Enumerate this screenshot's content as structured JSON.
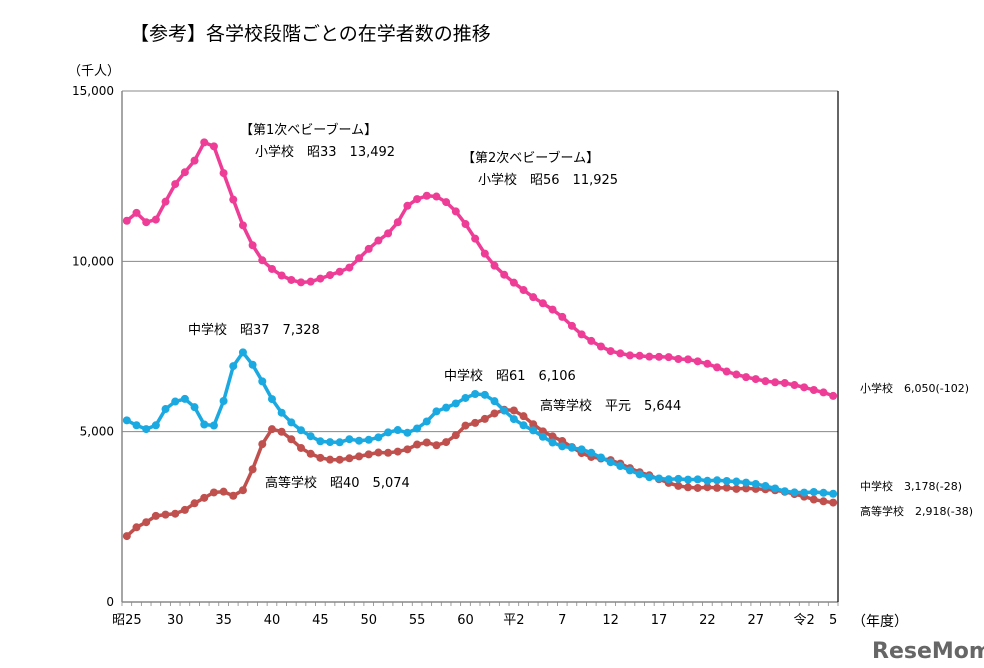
{
  "chart_data": {
    "type": "line",
    "title": "【参考】各学校段階ごとの在学者数の推移",
    "ylabel": "（千人）",
    "xlabel": "（年度）",
    "ylim": [
      0,
      15000
    ],
    "yticks": [
      "0",
      "5,000",
      "10,000",
      "15,000"
    ],
    "ytick_values": [
      0,
      5000,
      10000,
      15000
    ],
    "grid": "horizontal",
    "x_tick_labels": [
      {
        "index": 0,
        "label": "昭25"
      },
      {
        "index": 5,
        "label": "30"
      },
      {
        "index": 10,
        "label": "35"
      },
      {
        "index": 15,
        "label": "40"
      },
      {
        "index": 20,
        "label": "45"
      },
      {
        "index": 25,
        "label": "50"
      },
      {
        "index": 30,
        "label": "55"
      },
      {
        "index": 35,
        "label": "60"
      },
      {
        "index": 40,
        "label": "平2"
      },
      {
        "index": 45,
        "label": "7"
      },
      {
        "index": 50,
        "label": "12"
      },
      {
        "index": 55,
        "label": "17"
      },
      {
        "index": 60,
        "label": "22"
      },
      {
        "index": 65,
        "label": "27"
      },
      {
        "index": 70,
        "label": "令2"
      },
      {
        "index": 73,
        "label": "5"
      }
    ],
    "x_start_year": "昭25",
    "series": [
      {
        "name": "小学校",
        "color": "#ee3d96",
        "end_label": "小学校　6,050(-102)",
        "values": [
          11191,
          11423,
          11148,
          11225,
          11751,
          12267,
          12616,
          12956,
          13492,
          13375,
          12591,
          11811,
          11057,
          10471,
          10030,
          9776,
          9584,
          9453,
          9383,
          9403,
          9493,
          9596,
          9696,
          9816,
          10089,
          10365,
          10610,
          10819,
          11147,
          11630,
          11827,
          11925,
          11902,
          11739,
          11465,
          11095,
          10665,
          10226,
          9873,
          9607,
          9374,
          9158,
          8948,
          8769,
          8583,
          8370,
          8106,
          7856,
          7664,
          7500,
          7366,
          7297,
          7239,
          7227,
          7201,
          7197,
          7188,
          7133,
          7122,
          7064,
          6993,
          6887,
          6765,
          6677,
          6601,
          6543,
          6483,
          6449,
          6428,
          6369,
          6301,
          6223,
          6152,
          6050
        ]
      },
      {
        "name": "中学校",
        "color": "#1aa9e0",
        "end_label": "中学校　3,178(-28)",
        "values": [
          5333,
          5188,
          5076,
          5187,
          5664,
          5884,
          5963,
          5719,
          5210,
          5181,
          5900,
          6925,
          7328,
          6964,
          6476,
          5957,
          5556,
          5271,
          5043,
          4866,
          4717,
          4694,
          4688,
          4779,
          4735,
          4762,
          4833,
          4978,
          5048,
          4967,
          5094,
          5300,
          5594,
          5706,
          5828,
          5990,
          6106,
          6081,
          5896,
          5619,
          5369,
          5188,
          5037,
          4850,
          4681,
          4570,
          4527,
          4481,
          4380,
          4243,
          4104,
          3992,
          3863,
          3748,
          3664,
          3626,
          3602,
          3614,
          3592,
          3600,
          3558,
          3573,
          3552,
          3536,
          3504,
          3465,
          3406,
          3333,
          3252,
          3218,
          3211,
          3229,
          3206,
          3178
        ]
      },
      {
        "name": "高等学校",
        "color": "#c0504d",
        "end_label": "高等学校　2,918(-38)",
        "values": [
          1935,
          2193,
          2342,
          2528,
          2565,
          2592,
          2703,
          2898,
          3057,
          3216,
          3239,
          3119,
          3282,
          3897,
          4634,
          5074,
          4998,
          4776,
          4522,
          4351,
          4232,
          4178,
          4177,
          4218,
          4274,
          4333,
          4387,
          4380,
          4415,
          4481,
          4622,
          4682,
          4601,
          4694,
          4897,
          5178,
          5258,
          5375,
          5534,
          5644,
          5623,
          5455,
          5218,
          5010,
          4862,
          4725,
          4547,
          4371,
          4258,
          4212,
          4165,
          4062,
          3929,
          3810,
          3719,
          3605,
          3495,
          3407,
          3367,
          3347,
          3369,
          3349,
          3356,
          3320,
          3334,
          3319,
          3309,
          3280,
          3236,
          3168,
          3093,
          3008,
          2956,
          2918
        ]
      }
    ],
    "annotations": {
      "boom1_title": "【第1次ベビーブーム】",
      "boom1_value": "小学校　昭33　13,492",
      "boom2_title": "【第2次ベビーブーム】",
      "boom2_value": "小学校　昭56　11,925",
      "jhs_peak1": "中学校　昭37　7,328",
      "jhs_peak2": "中学校　昭61　6,106",
      "hs_peak1": "高等学校　昭40　5,074",
      "hs_peak2": "高等学校　平元　5,644"
    }
  },
  "watermark": "ReseMom"
}
